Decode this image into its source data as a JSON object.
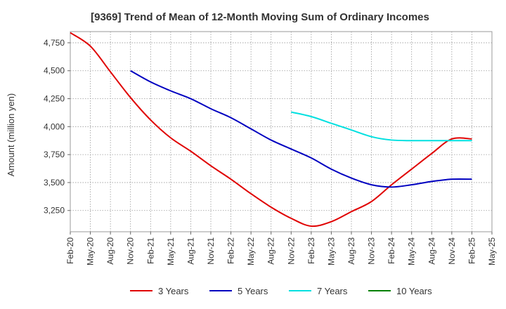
{
  "chart_data": {
    "type": "line",
    "title": "[9369]  Trend of Mean of 12-Month Moving Sum of Ordinary Incomes",
    "xlabel": "",
    "ylabel": "Amount (million yen)",
    "x_ticks": [
      "Feb-20",
      "May-20",
      "Aug-20",
      "Nov-20",
      "Feb-21",
      "May-21",
      "Aug-21",
      "Nov-21",
      "Feb-22",
      "May-22",
      "Aug-22",
      "Nov-22",
      "Feb-23",
      "May-23",
      "Aug-23",
      "Nov-23",
      "Feb-24",
      "May-24",
      "Aug-24",
      "Nov-24",
      "Feb-25",
      "May-25"
    ],
    "y_ticks": [
      3250,
      3500,
      3750,
      4000,
      4250,
      4500,
      4750
    ],
    "ylim": [
      3060,
      4850
    ],
    "grid": true,
    "legend_position": "bottom",
    "series": [
      {
        "name": "3 Years",
        "color": "#e00000",
        "x_index": [
          0,
          1,
          2,
          3,
          4,
          5,
          6,
          7,
          8,
          9,
          10,
          11,
          12,
          13,
          14,
          15,
          16,
          17,
          18,
          19,
          20
        ],
        "values": [
          4840,
          4720,
          4490,
          4260,
          4060,
          3900,
          3780,
          3650,
          3530,
          3400,
          3280,
          3180,
          3110,
          3150,
          3240,
          3330,
          3480,
          3620,
          3760,
          3890,
          3890
        ]
      },
      {
        "name": "5 Years",
        "color": "#0000c0",
        "x_index": [
          3,
          4,
          5,
          6,
          7,
          8,
          9,
          10,
          11,
          12,
          13,
          14,
          15,
          16,
          17,
          18,
          19,
          20
        ],
        "values": [
          4500,
          4400,
          4320,
          4250,
          4160,
          4080,
          3980,
          3880,
          3800,
          3720,
          3620,
          3540,
          3480,
          3460,
          3480,
          3510,
          3530,
          3530
        ],
        "values_note": "starts at Nov-20"
      },
      {
        "name": "7 Years",
        "color": "#00e0e0",
        "x_index": [
          11,
          12,
          13,
          14,
          15,
          16,
          17,
          18,
          19,
          20
        ],
        "values": [
          4130,
          4090,
          4030,
          3970,
          3910,
          3880,
          3875,
          3875,
          3875,
          3875
        ]
      },
      {
        "name": "10 Years",
        "color": "#008000",
        "x_index": [],
        "values": []
      }
    ]
  }
}
